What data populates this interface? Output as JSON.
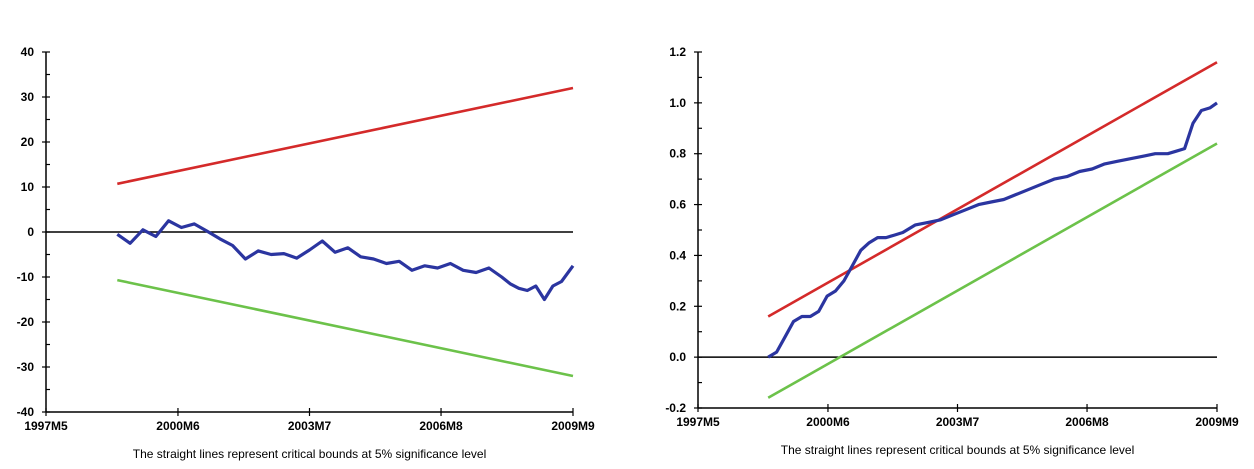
{
  "chart_data": [
    {
      "type": "line",
      "title": "",
      "xlabel": "",
      "ylabel": "",
      "ylim": [
        -40,
        40
      ],
      "yticks": [
        -40,
        -30,
        -20,
        -10,
        0,
        10,
        20,
        30,
        40
      ],
      "xlim": [
        1997.33,
        2009.67
      ],
      "xtick_labels": [
        "1997M5",
        "2000M6",
        "2003M7",
        "2006M8",
        "2009M9"
      ],
      "xtick_values": [
        1997.33,
        2000.42,
        2003.5,
        2006.58,
        2009.67
      ],
      "note": "The straight lines represent critical bounds at 5% significance level",
      "grid": false,
      "series": [
        {
          "color": "#d42a2a",
          "x": [
            1999.0,
            2009.67
          ],
          "y": [
            10.7,
            32.0
          ]
        },
        {
          "color": "#6cc24a",
          "x": [
            1999.0,
            2009.67
          ],
          "y": [
            -10.7,
            -32.0
          ]
        },
        {
          "color": "#2b35a0",
          "x": [
            1999.0,
            1999.3,
            1999.6,
            1999.9,
            2000.2,
            2000.5,
            2000.8,
            2001.1,
            2001.4,
            2001.7,
            2002.0,
            2002.3,
            2002.6,
            2002.9,
            2003.2,
            2003.5,
            2003.8,
            2004.1,
            2004.4,
            2004.7,
            2005.0,
            2005.3,
            2005.6,
            2005.9,
            2006.2,
            2006.5,
            2006.8,
            2007.1,
            2007.4,
            2007.7,
            2008.0,
            2008.2,
            2008.4,
            2008.6,
            2008.8,
            2009.0,
            2009.2,
            2009.4,
            2009.67
          ],
          "y": [
            -0.5,
            -2.5,
            0.5,
            -1.0,
            2.5,
            1.0,
            1.8,
            0.2,
            -1.5,
            -3.0,
            -6.0,
            -4.2,
            -5.0,
            -4.8,
            -5.8,
            -4.0,
            -2.0,
            -4.5,
            -3.5,
            -5.5,
            -6.0,
            -7.0,
            -6.5,
            -8.5,
            -7.5,
            -8.0,
            -7.0,
            -8.5,
            -9.0,
            -8.0,
            -10.0,
            -11.5,
            -12.5,
            -13.0,
            -12.0,
            -15.0,
            -12.0,
            -11.0,
            -7.5
          ]
        }
      ]
    },
    {
      "type": "line",
      "title": "",
      "xlabel": "",
      "ylabel": "",
      "ylim": [
        -0.2,
        1.2
      ],
      "yticks": [
        -0.2,
        0.0,
        0.2,
        0.4,
        0.6,
        0.8,
        1.0,
        1.2
      ],
      "ytick_labels": [
        "-0.2",
        "0.0",
        "0.2",
        "0.4",
        "0.6",
        "0.8",
        "1.0",
        "1.2"
      ],
      "xlim": [
        1997.33,
        2009.67
      ],
      "xtick_labels": [
        "1997M5",
        "2000M6",
        "2003M7",
        "2006M8",
        "2009M9"
      ],
      "xtick_values": [
        1997.33,
        2000.42,
        2003.5,
        2006.58,
        2009.67
      ],
      "note": "The straight lines represent critical bounds at 5% significance level",
      "grid": false,
      "series": [
        {
          "color": "#d42a2a",
          "x": [
            1999.0,
            2009.67
          ],
          "y": [
            0.16,
            1.16
          ]
        },
        {
          "color": "#6cc24a",
          "x": [
            1999.0,
            2009.67
          ],
          "y": [
            -0.16,
            0.84
          ]
        },
        {
          "color": "#2b35a0",
          "x": [
            1999.0,
            1999.2,
            1999.4,
            1999.6,
            1999.8,
            2000.0,
            2000.2,
            2000.4,
            2000.6,
            2000.8,
            2001.0,
            2001.2,
            2001.4,
            2001.6,
            2001.8,
            2002.0,
            2002.2,
            2002.5,
            2002.8,
            2003.1,
            2003.4,
            2003.7,
            2004.0,
            2004.3,
            2004.6,
            2004.9,
            2005.2,
            2005.5,
            2005.8,
            2006.1,
            2006.4,
            2006.7,
            2007.0,
            2007.3,
            2007.6,
            2007.9,
            2008.2,
            2008.5,
            2008.7,
            2008.9,
            2009.1,
            2009.3,
            2009.5,
            2009.67
          ],
          "y": [
            0.0,
            0.02,
            0.08,
            0.14,
            0.16,
            0.16,
            0.18,
            0.24,
            0.26,
            0.3,
            0.36,
            0.42,
            0.45,
            0.47,
            0.47,
            0.48,
            0.49,
            0.52,
            0.53,
            0.54,
            0.56,
            0.58,
            0.6,
            0.61,
            0.62,
            0.64,
            0.66,
            0.68,
            0.7,
            0.71,
            0.73,
            0.74,
            0.76,
            0.77,
            0.78,
            0.79,
            0.8,
            0.8,
            0.81,
            0.82,
            0.92,
            0.97,
            0.98,
            1.0
          ]
        }
      ]
    }
  ]
}
